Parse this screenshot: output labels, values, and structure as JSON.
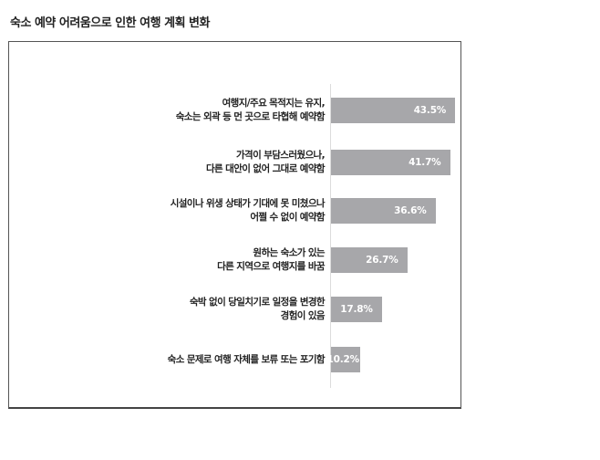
{
  "title": "숙소 예약 어려움으로 인한 여행 계획 변화",
  "chart_data": {
    "type": "bar",
    "orientation": "horizontal",
    "title": "숙소 예약 어려움으로 인한 여행 계획 변화",
    "xlabel": "",
    "ylabel": "",
    "grid": false,
    "legend": null,
    "unit": "%",
    "bar_color": "#a7a7aa",
    "categories": [
      "여행지/주요 목적지는 유지, 숙소는 외곽 등 먼 곳으로 타협해 예약함",
      "가격이 부담스러웠으나, 다른 대안이 없어 그대로 예약함",
      "시설이나 위생 상태가 기대에 못 미쳤으나 어쩔 수 없이 예약함",
      "원하는 숙소가 있는 다른 지역으로 여행지를 바꿈",
      "숙박 없이 당일치기로 일정을 변경한 경험이 있음",
      "숙소 문제로 여행 자체를 보류 또는 포기함"
    ],
    "values": [
      43.5,
      41.7,
      36.6,
      26.7,
      17.8,
      10.2
    ]
  },
  "rows": [
    {
      "line1": "여행지/주요 목적지는 유지,",
      "line2": "숙소는 외곽 등 먼 곳으로 타협해 예약함",
      "value": 43.5,
      "value_label": "43.5%"
    },
    {
      "line1": "가격이 부담스러웠으나,",
      "line2": "다른 대안이 없어 그대로 예약함",
      "value": 41.7,
      "value_label": "41.7%"
    },
    {
      "line1": "시설이나 위생 상태가 기대에 못 미쳤으나",
      "line2": "어쩔 수 없이 예약함",
      "value": 36.6,
      "value_label": "36.6%"
    },
    {
      "line1": "원하는 숙소가 있는",
      "line2": "다른 지역으로 여행지를 바꿈",
      "value": 26.7,
      "value_label": "26.7%"
    },
    {
      "line1": "숙박 없이 당일치기로 일정을 변경한",
      "line2": "경험이 있음",
      "value": 17.8,
      "value_label": "17.8%"
    },
    {
      "line1": "숙소 문제로 여행 자체를 보류 또는 포기함",
      "line2": "",
      "value": 10.2,
      "value_label": "10.2%"
    }
  ]
}
